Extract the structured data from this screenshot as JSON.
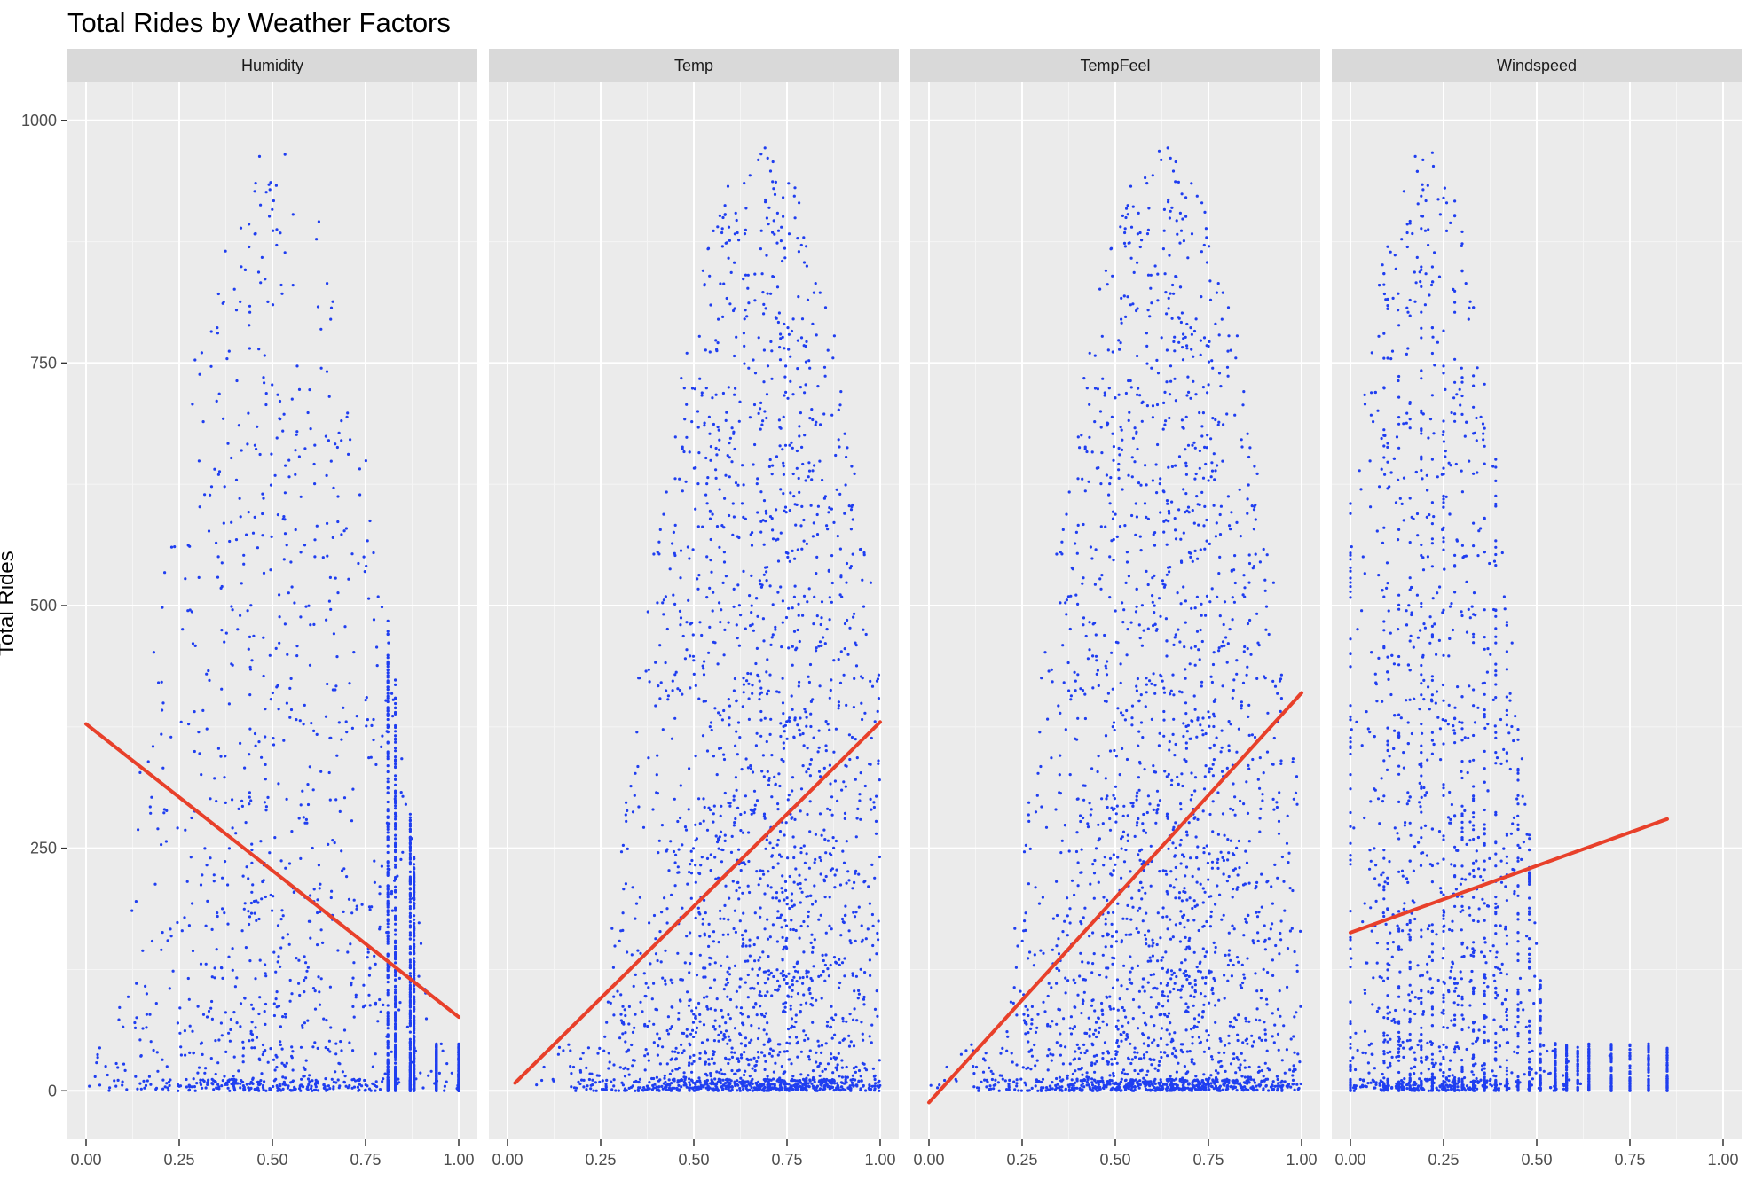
{
  "chart_data": {
    "type": "scatter",
    "title": "Total Rides by Weather Factors",
    "ylabel": "Total Rides",
    "xlabel": "",
    "xlim": [
      -0.05,
      1.05
    ],
    "ylim": [
      -50,
      1040
    ],
    "x_ticks": [
      "0.00",
      "0.25",
      "0.50",
      "0.75",
      "1.00"
    ],
    "y_ticks": [
      "0",
      "250",
      "500",
      "750",
      "1000"
    ],
    "point_color": "#1f3ef0",
    "trend_color": "#e8402a",
    "panel_bg": "#ebebeb",
    "strip_bg": "#d9d9d9",
    "panels": [
      {
        "name": "Humidity",
        "trend": {
          "x": [
            0.0,
            1.0
          ],
          "y": [
            378,
            76
          ]
        },
        "x_range": [
          0.0,
          1.0
        ],
        "peak_x": 0.5,
        "spread": 0.2,
        "max_y": 975,
        "discrete_x": [
          0.81,
          0.83,
          0.87,
          0.88,
          0.94,
          1.0
        ]
      },
      {
        "name": "Temp",
        "trend": {
          "x": [
            0.02,
            1.0
          ],
          "y": [
            8,
            380
          ]
        },
        "x_range": [
          0.02,
          1.0
        ],
        "peak_x": 0.68,
        "spread": 0.2,
        "max_y": 975,
        "discrete_x": []
      },
      {
        "name": "TempFeel",
        "trend": {
          "x": [
            0.0,
            1.0
          ],
          "y": [
            -12,
            410
          ]
        },
        "x_range": [
          0.0,
          1.0
        ],
        "peak_x": 0.63,
        "spread": 0.2,
        "max_y": 975,
        "discrete_x": []
      },
      {
        "name": "Windspeed",
        "trend": {
          "x": [
            0.0,
            0.85
          ],
          "y": [
            163,
            280
          ]
        },
        "x_range": [
          0.0,
          0.85
        ],
        "peak_x": 0.2,
        "spread": 0.15,
        "max_y": 975,
        "discrete_x": [
          0.0,
          0.09,
          0.1,
          0.13,
          0.16,
          0.19,
          0.22,
          0.25,
          0.28,
          0.3,
          0.33,
          0.36,
          0.39,
          0.42,
          0.45,
          0.48,
          0.51,
          0.55,
          0.58,
          0.61,
          0.64,
          0.7,
          0.75,
          0.8,
          0.85
        ]
      }
    ]
  }
}
